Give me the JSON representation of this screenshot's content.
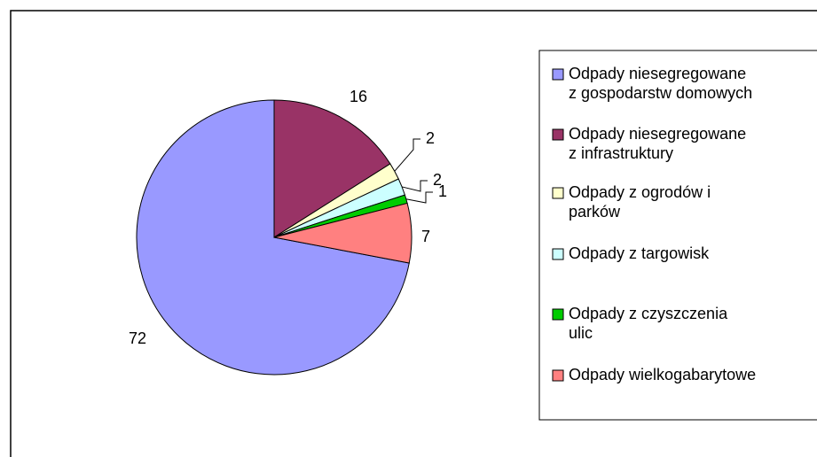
{
  "chart_data": {
    "type": "pie",
    "labels": [
      [
        "Odpady niesegregowane",
        "z gospodarstw domowych"
      ],
      [
        "Odpady niesegregowane",
        "z infrastruktury"
      ],
      [
        "Odpady z ogrodów i",
        "parków"
      ],
      [
        "Odpady z targowisk"
      ],
      [
        "Odpady z czyszczenia",
        "ulic"
      ],
      [
        "Odpady wielkogabarytowe"
      ]
    ],
    "values": [
      72,
      16,
      2,
      2,
      1,
      7
    ],
    "colors": [
      "#9999ff",
      "#993366",
      "#ffffcc",
      "#ccffff",
      "#00cc00",
      "#ff8080"
    ],
    "legend": "right"
  }
}
